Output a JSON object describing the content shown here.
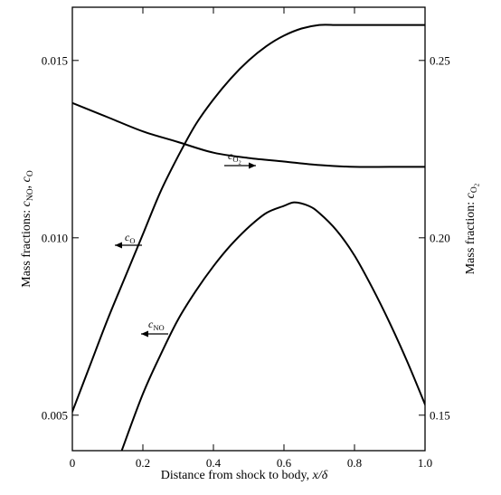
{
  "chart_data": {
    "type": "line",
    "xlabel": "Distance from shock to body, x/δ",
    "xlabel_parts": {
      "text": "Distance from shock to body, ",
      "var": "x/δ"
    },
    "ylabel_left": "Mass fractions: cNO, cO",
    "ylabel_left_parts": {
      "prefix": "Mass fractions: ",
      "v1": "c",
      "s1": "NO",
      "sep": ", ",
      "v2": "c",
      "s2": "O"
    },
    "ylabel_right": "Mass fraction: cO2",
    "ylabel_right_parts": {
      "prefix": "Mass fraction: ",
      "v": "c",
      "s": "O",
      "ss": "2"
    },
    "xlim": [
      0,
      1.0
    ],
    "ylim_left": [
      0.004,
      0.0165
    ],
    "ylim_right": [
      0.14,
      0.265
    ],
    "x_ticks": [
      0,
      0.2,
      0.4,
      0.6,
      0.8,
      1.0
    ],
    "x_tick_labels": [
      "0",
      "0.2",
      "0.4",
      "0.6",
      "0.8",
      "1.0"
    ],
    "y_left_ticks": [
      0.005,
      0.01,
      0.015
    ],
    "y_left_tick_labels": [
      "0.005",
      "0.010",
      "0.015"
    ],
    "y_right_ticks": [
      0.15,
      0.2,
      0.25
    ],
    "y_right_tick_labels": [
      "0.15",
      "0.20",
      "0.25"
    ],
    "grid": false,
    "series": [
      {
        "id": "cO",
        "axis": "left",
        "label": {
          "v": "c",
          "s": "O"
        },
        "arrow": "left",
        "x": [
          0,
          0.05,
          0.1,
          0.15,
          0.2,
          0.25,
          0.3,
          0.35,
          0.4,
          0.45,
          0.5,
          0.55,
          0.6,
          0.65,
          0.7,
          0.75,
          0.8,
          0.85,
          0.9,
          0.95,
          1.0
        ],
        "values": [
          0.0051,
          0.0064,
          0.0077,
          0.0089,
          0.0101,
          0.0113,
          0.0123,
          0.0132,
          0.0139,
          0.0145,
          0.015,
          0.0154,
          0.0157,
          0.0159,
          0.016,
          0.016,
          0.016,
          0.016,
          0.016,
          0.016,
          0.016
        ]
      },
      {
        "id": "cNO",
        "axis": "left",
        "label": {
          "v": "c",
          "s": "NO"
        },
        "arrow": "left",
        "x": [
          0.14,
          0.2,
          0.25,
          0.3,
          0.35,
          0.4,
          0.45,
          0.5,
          0.55,
          0.6,
          0.63,
          0.67,
          0.7,
          0.75,
          0.8,
          0.85,
          0.9,
          0.95,
          1.0
        ],
        "values": [
          0.004,
          0.0056,
          0.0067,
          0.0077,
          0.0085,
          0.0092,
          0.0098,
          0.0103,
          0.0107,
          0.0109,
          0.011,
          0.0109,
          0.0107,
          0.0102,
          0.0095,
          0.0086,
          0.0076,
          0.0065,
          0.0053
        ]
      },
      {
        "id": "cO2",
        "axis": "right",
        "label": {
          "v": "c",
          "s": "O",
          "ss": "2"
        },
        "arrow": "right",
        "x": [
          0,
          0.1,
          0.2,
          0.3,
          0.4,
          0.5,
          0.6,
          0.7,
          0.8,
          0.9,
          1.0
        ],
        "values": [
          0.238,
          0.234,
          0.23,
          0.227,
          0.224,
          0.2225,
          0.2215,
          0.2205,
          0.22,
          0.22,
          0.22
        ]
      }
    ]
  }
}
